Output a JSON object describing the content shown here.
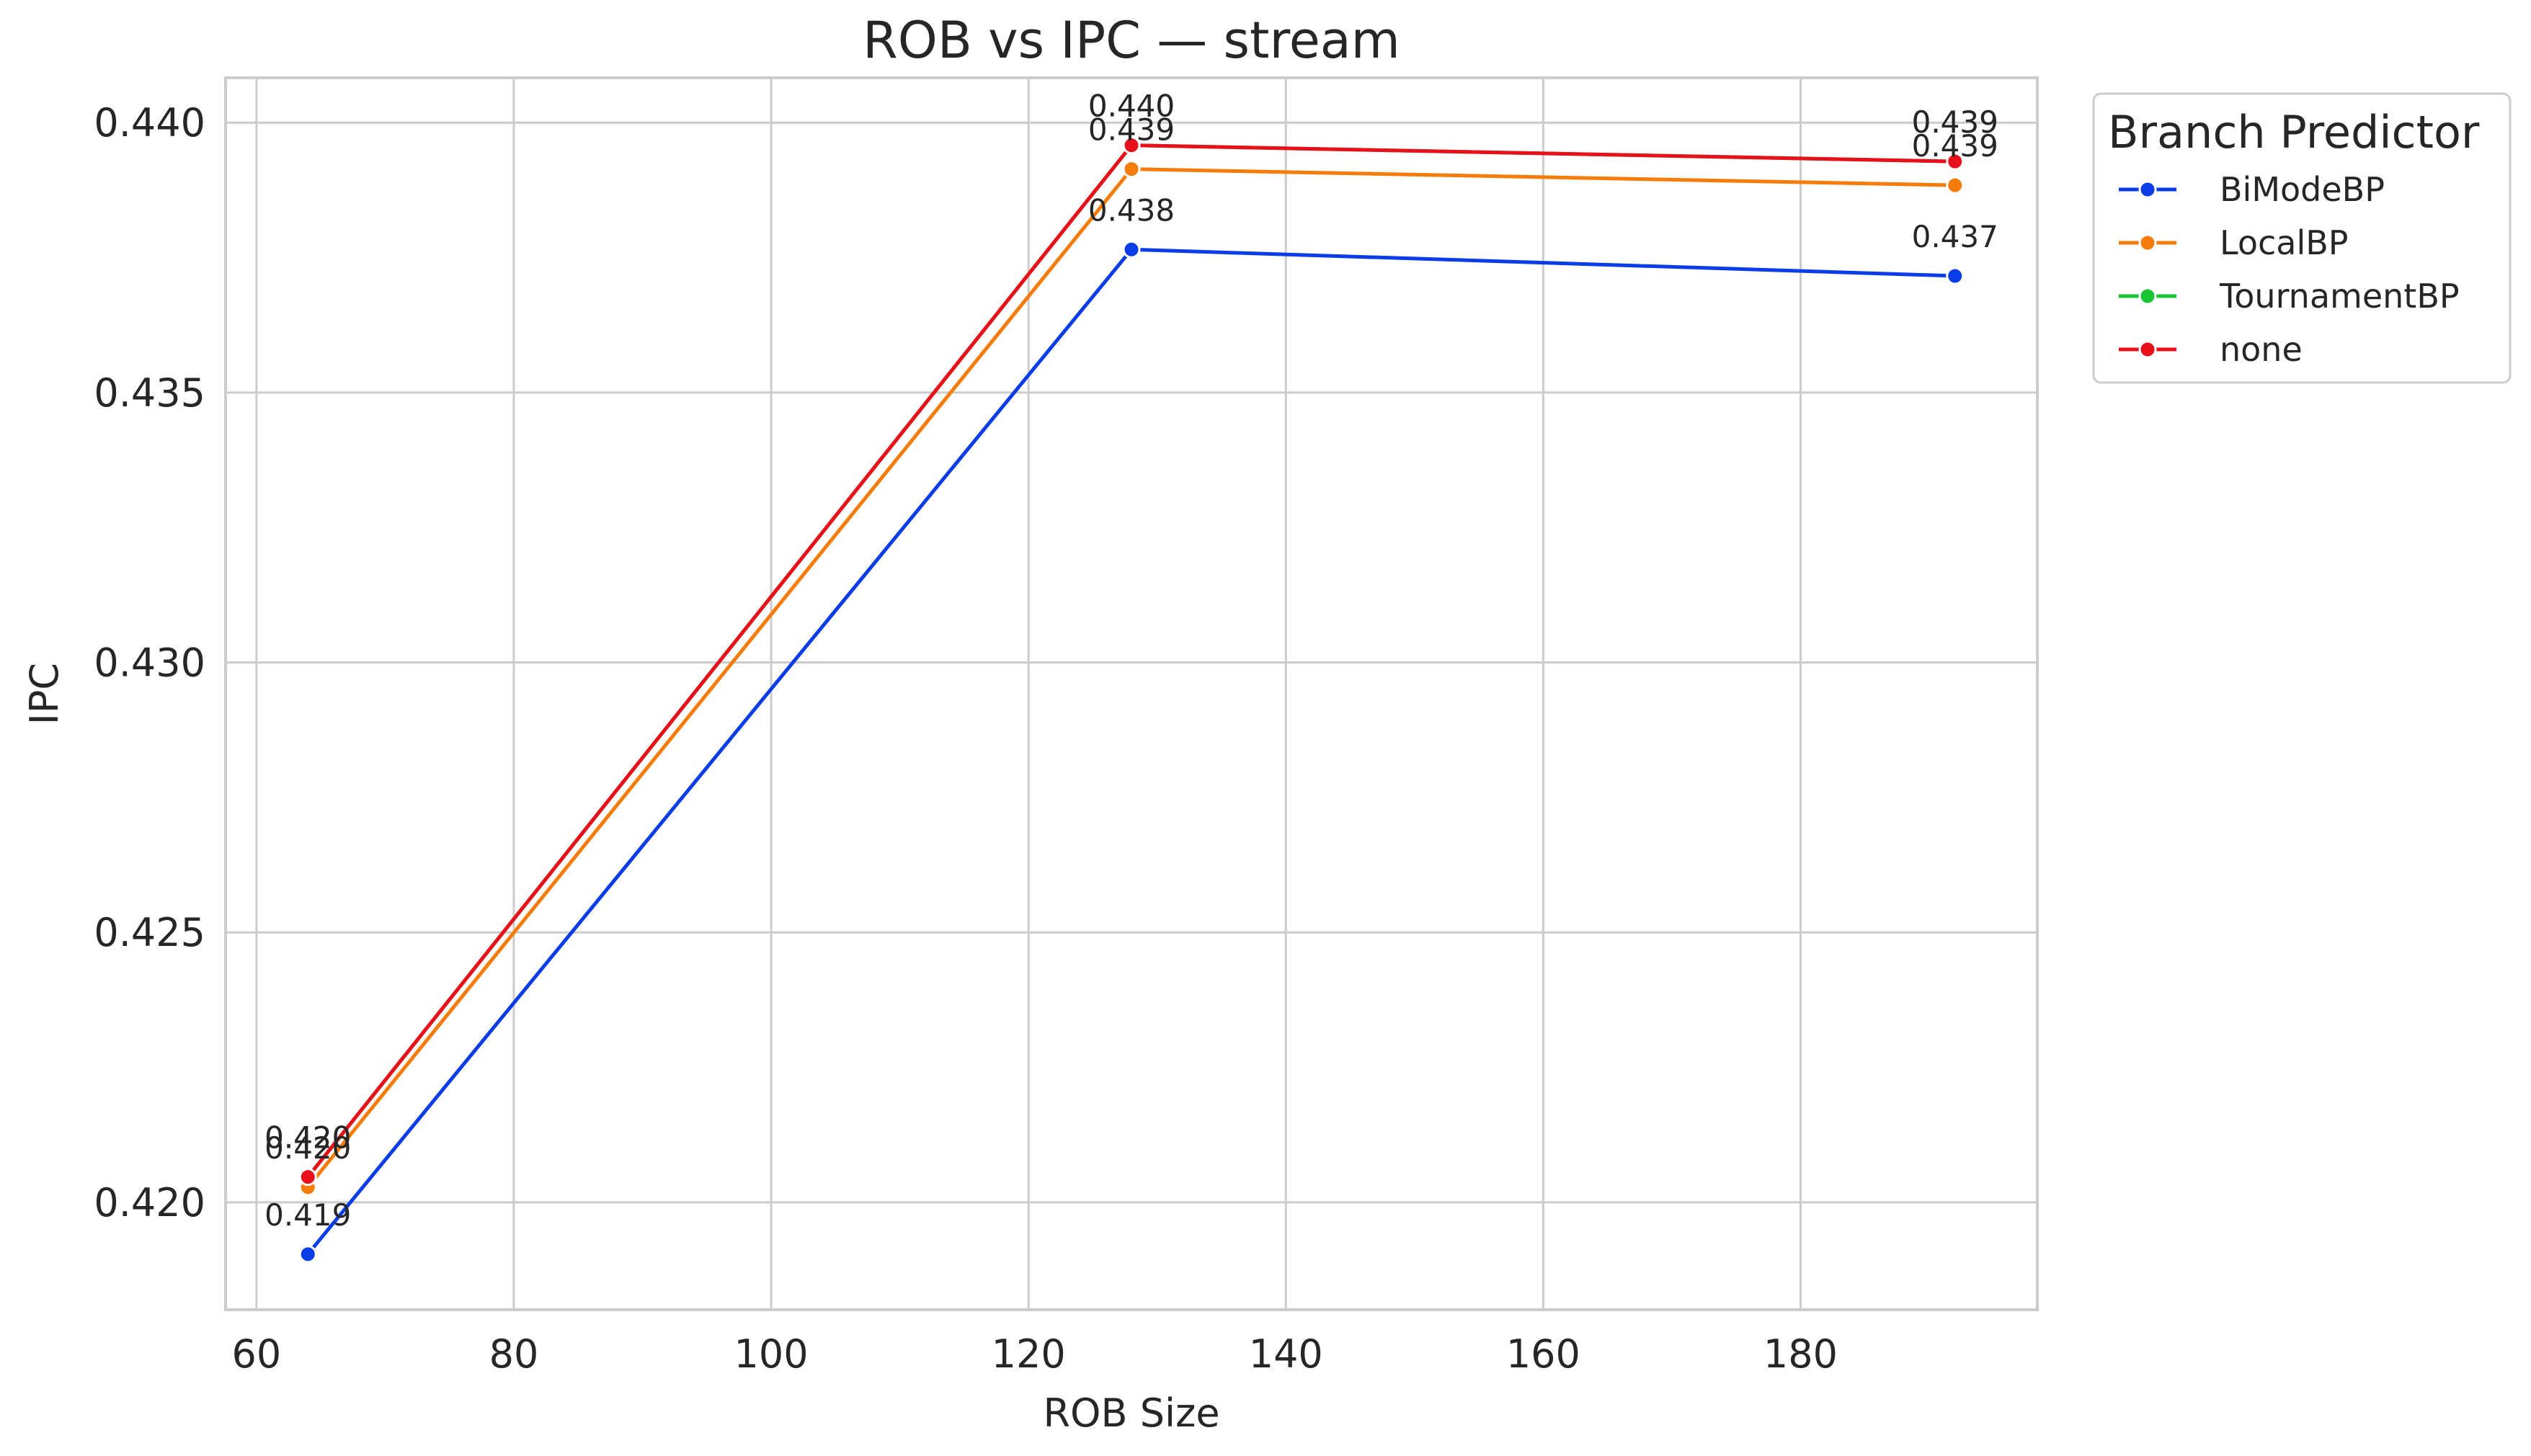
{
  "chart_data": {
    "type": "line",
    "title": "ROB vs IPC — stream",
    "xlabel": "ROB Size",
    "ylabel": "IPC",
    "xlim": [
      57.6,
      198.4
    ],
    "ylim": [
      0.41801,
      0.44083
    ],
    "xticks": [
      60,
      80,
      100,
      120,
      140,
      160,
      180
    ],
    "yticks": [
      0.42,
      0.425,
      0.43,
      0.435,
      0.44
    ],
    "ytick_labels": [
      "0.420",
      "0.425",
      "0.430",
      "0.435",
      "0.440"
    ],
    "grid": true,
    "legend_position": "outside-right-top",
    "legend_title": "Branch Predictor",
    "x": [
      64,
      128,
      192
    ],
    "series": [
      {
        "name": "BiModeBP",
        "color": "#0a3de8",
        "values": [
          0.41904,
          0.43765,
          0.43716
        ],
        "labels": [
          "0.419",
          "0.438",
          "0.437"
        ]
      },
      {
        "name": "LocalBP",
        "color": "#f57c0a",
        "values": [
          0.42028,
          0.43914,
          0.43884
        ],
        "labels": [
          "0.420",
          "0.439",
          "0.439"
        ]
      },
      {
        "name": "TournamentBP",
        "color": "#1bc432",
        "values": [
          0.42047,
          0.43958,
          0.43928
        ],
        "labels": [
          "0.420",
          "0.440",
          "0.439"
        ]
      },
      {
        "name": "none",
        "color": "#e8101a",
        "values": [
          0.42047,
          0.43958,
          0.43928
        ],
        "labels": [
          "0.420",
          "0.440",
          "0.439"
        ]
      }
    ]
  }
}
